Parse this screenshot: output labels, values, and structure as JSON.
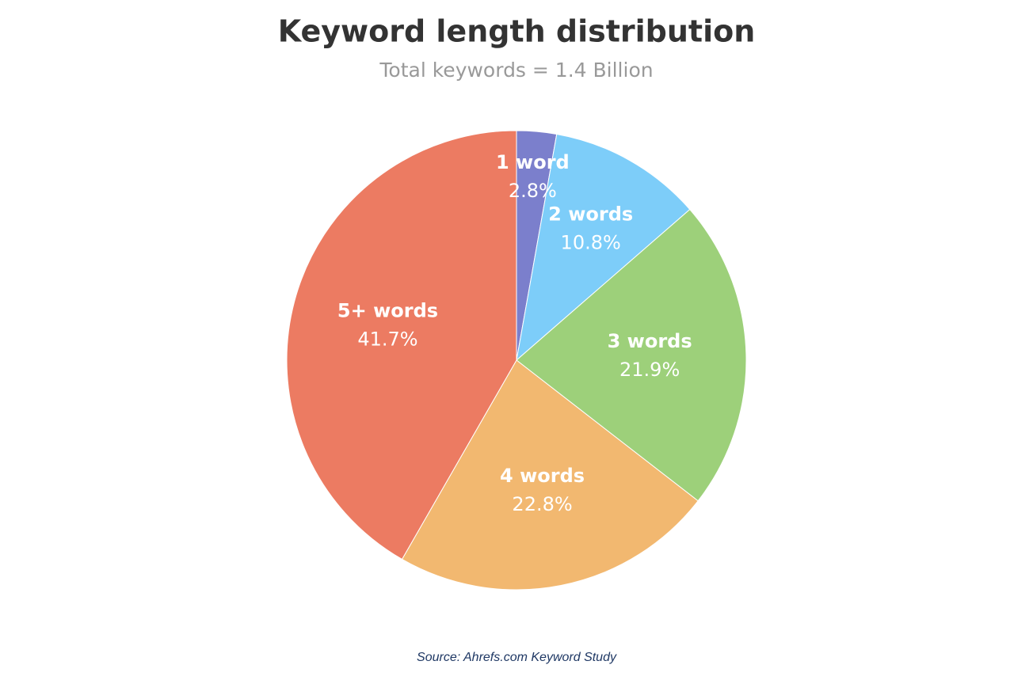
{
  "chart_data": {
    "type": "pie",
    "title": "Keyword length distribution",
    "subtitle": "Total keywords = 1.4 Billion",
    "source": "Source: Ahrefs.com Keyword Study",
    "categories": [
      "1 word",
      "2 words",
      "3 words",
      "4 words",
      "5+ words"
    ],
    "values": [
      2.8,
      10.8,
      21.9,
      22.8,
      41.7
    ],
    "value_labels": [
      "2.8%",
      "10.8%",
      "21.9%",
      "22.8%",
      "41.7%"
    ],
    "colors": [
      "#7b7fcc",
      "#7dcdf9",
      "#9dd07a",
      "#f2b870",
      "#ec7b62"
    ]
  }
}
